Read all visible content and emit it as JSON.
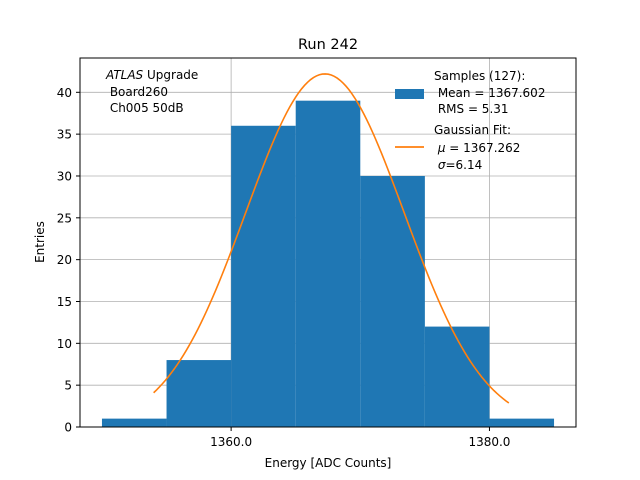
{
  "chart_data": {
    "type": "bar",
    "title": "Run 242",
    "xlabel": "Energy [ADC Counts]",
    "ylabel": "Entries",
    "xlim": [
      1348.3,
      1386.7
    ],
    "ylim": [
      0,
      44.1
    ],
    "x_ticks": [
      1360.0,
      1380.0
    ],
    "x_tick_labels": [
      "1360.0",
      "1380.0"
    ],
    "y_ticks": [
      0,
      5,
      10,
      15,
      20,
      25,
      30,
      35,
      40
    ],
    "y_tick_labels": [
      "0",
      "5",
      "10",
      "15",
      "20",
      "25",
      "30",
      "35",
      "40"
    ],
    "grid": true,
    "bin_edges": [
      1350,
      1355,
      1360,
      1365,
      1370,
      1375,
      1380,
      1385
    ],
    "values": [
      1,
      8,
      36,
      39,
      30,
      12,
      1
    ],
    "annotation": {
      "atlas": "ATLAS",
      "line1_rest": " Upgrade",
      "line2": " Board260",
      "line3": " Ch005 50dB"
    },
    "gaussian_fit": {
      "amplitude": 42.2,
      "mu": 1367.262,
      "sigma": 6.14,
      "x_range": [
        1354.0,
        1381.5
      ]
    },
    "legend": {
      "position": "top-right",
      "samples_line1": "Samples (127):",
      "samples_line2": " Mean = 1367.602",
      "samples_line3": " RMS = 5.31",
      "fit_line1": "Gaussian Fit:",
      "fit_line2_sym": "μ",
      "fit_line2_rest": " = 1367.262",
      "fit_line3_sym": "σ",
      "fit_line3_rest": "=6.14"
    },
    "colors": {
      "bars": "#1f77b4",
      "fit": "#ff7f0e",
      "grid": "#b0b0b0"
    }
  }
}
